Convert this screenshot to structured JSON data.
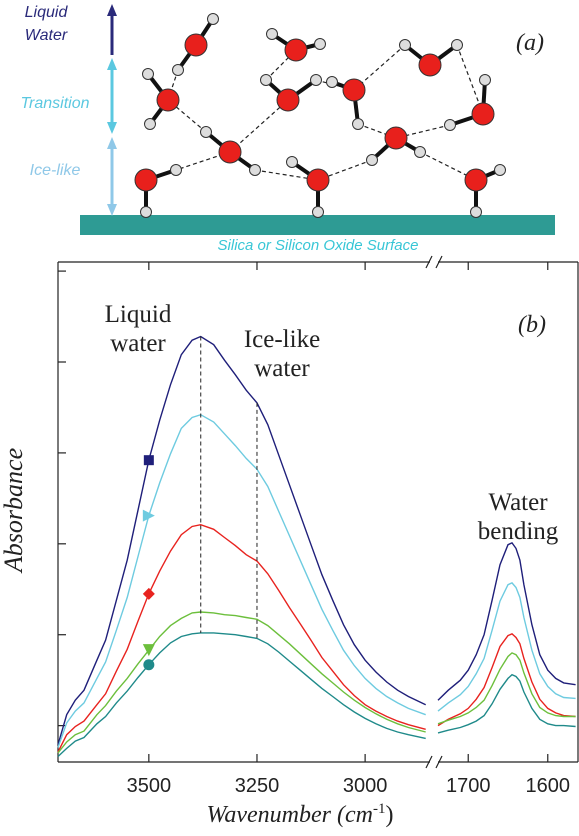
{
  "diagram": {
    "label": "(a)",
    "liquid_water": [
      "Liquid",
      "Water"
    ],
    "transition": "Transition",
    "ice_like": "Ice-like",
    "surface": "Silica or Silicon Oxide Surface"
  },
  "chart_data": {
    "type": "line",
    "label": "(b)",
    "xlabel": [
      "Wavenumber (cm",
      "-1",
      ")"
    ],
    "ylabel": "Absorbance",
    "annotations": [
      [
        "Liquid",
        "water"
      ],
      [
        "Ice-like",
        "water"
      ],
      [
        "Water",
        "bending"
      ]
    ],
    "xlim": [
      3710,
      1562
    ],
    "xbreak": [
      2850,
      1738
    ],
    "xticks": [
      3500,
      3250,
      3000,
      1700,
      1600
    ],
    "ylim": [
      -0.4,
      5.1
    ],
    "yticks": [
      0,
      1,
      2,
      3,
      4,
      5
    ],
    "vlines": [
      3380,
      3250
    ],
    "marker_x": 3500,
    "x": [
      3710,
      3690,
      3670,
      3650,
      3620,
      3600,
      3575,
      3550,
      3525,
      3500,
      3475,
      3450,
      3425,
      3400,
      3380,
      3350,
      3325,
      3300,
      3275,
      3250,
      3225,
      3200,
      3175,
      3150,
      3125,
      3100,
      3075,
      3050,
      3025,
      3000,
      2975,
      2950,
      2925,
      2900,
      2860,
      null,
      1738,
      1725,
      1710,
      1700,
      1690,
      1680,
      1670,
      1660,
      1650,
      1645,
      1640,
      1635,
      1630,
      1620,
      1610,
      1600,
      1590,
      1580,
      1565
    ],
    "series": [
      {
        "color": "#1f1f7a",
        "marker": "square",
        "values": [
          -0.21,
          0.12,
          0.28,
          0.39,
          0.72,
          0.94,
          1.38,
          1.82,
          2.37,
          2.92,
          3.36,
          3.75,
          4.08,
          4.24,
          4.28,
          4.19,
          4.02,
          3.86,
          3.69,
          3.55,
          3.31,
          2.98,
          2.65,
          2.32,
          1.99,
          1.66,
          1.38,
          1.11,
          0.89,
          0.72,
          0.59,
          0.48,
          0.39,
          0.32,
          0.23,
          null,
          0.28,
          0.39,
          0.5,
          0.61,
          0.78,
          1.0,
          1.38,
          1.77,
          1.99,
          2.01,
          1.95,
          1.82,
          1.55,
          1.11,
          0.78,
          0.61,
          0.52,
          0.47,
          0.45
        ]
      },
      {
        "color": "#6ecbe0",
        "marker": "triangle-right",
        "values": [
          -0.24,
          0.03,
          0.16,
          0.25,
          0.52,
          0.7,
          1.05,
          1.41,
          1.86,
          2.31,
          2.67,
          2.99,
          3.27,
          3.39,
          3.42,
          3.34,
          3.21,
          3.08,
          2.94,
          2.82,
          2.63,
          2.36,
          2.09,
          1.82,
          1.55,
          1.28,
          1.05,
          0.83,
          0.66,
          0.52,
          0.41,
          0.32,
          0.25,
          0.19,
          0.12,
          null,
          0.16,
          0.25,
          0.34,
          0.43,
          0.57,
          0.74,
          1.05,
          1.37,
          1.55,
          1.57,
          1.52,
          1.41,
          1.19,
          0.83,
          0.57,
          0.43,
          0.35,
          0.31,
          0.3
        ]
      },
      {
        "color": "#e8231f",
        "marker": "diamond",
        "values": [
          -0.29,
          -0.1,
          -0.01,
          0.05,
          0.23,
          0.35,
          0.6,
          0.84,
          1.15,
          1.45,
          1.7,
          1.92,
          2.1,
          2.19,
          2.21,
          2.16,
          2.07,
          1.98,
          1.88,
          1.81,
          1.67,
          1.49,
          1.3,
          1.12,
          0.94,
          0.75,
          0.6,
          0.45,
          0.33,
          0.23,
          0.16,
          0.1,
          0.05,
          0.01,
          -0.04,
          null,
          0.0,
          0.07,
          0.13,
          0.19,
          0.29,
          0.42,
          0.64,
          0.87,
          0.99,
          1.01,
          0.97,
          0.9,
          0.74,
          0.48,
          0.29,
          0.19,
          0.14,
          0.11,
          0.1
        ]
      },
      {
        "color": "#6cbf3c",
        "marker": "triangle-down",
        "values": [
          -0.3,
          -0.18,
          -0.1,
          -0.06,
          0.12,
          0.22,
          0.38,
          0.52,
          0.68,
          0.83,
          0.98,
          1.1,
          1.18,
          1.24,
          1.25,
          1.24,
          1.22,
          1.21,
          1.19,
          1.17,
          1.1,
          1.0,
          0.9,
          0.79,
          0.68,
          0.57,
          0.47,
          0.37,
          0.28,
          0.2,
          0.13,
          0.07,
          0.02,
          -0.02,
          -0.07,
          null,
          0.02,
          0.06,
          0.1,
          0.14,
          0.2,
          0.28,
          0.44,
          0.62,
          0.76,
          0.8,
          0.78,
          0.72,
          0.58,
          0.35,
          0.2,
          0.14,
          0.11,
          0.1,
          0.1
        ]
      },
      {
        "color": "#1f8a8a",
        "marker": "circle",
        "values": [
          -0.34,
          -0.25,
          -0.17,
          -0.13,
          0.02,
          0.1,
          0.25,
          0.38,
          0.53,
          0.67,
          0.8,
          0.91,
          0.98,
          1.01,
          1.02,
          1.02,
          1.01,
          1.0,
          0.98,
          0.96,
          0.9,
          0.81,
          0.71,
          0.61,
          0.51,
          0.41,
          0.32,
          0.23,
          0.15,
          0.08,
          0.02,
          -0.03,
          -0.07,
          -0.1,
          -0.14,
          null,
          -0.08,
          -0.05,
          -0.02,
          0.01,
          0.05,
          0.11,
          0.24,
          0.4,
          0.52,
          0.56,
          0.54,
          0.49,
          0.37,
          0.19,
          0.07,
          0.02,
          0.0,
          0.0,
          -0.01
        ]
      }
    ]
  }
}
